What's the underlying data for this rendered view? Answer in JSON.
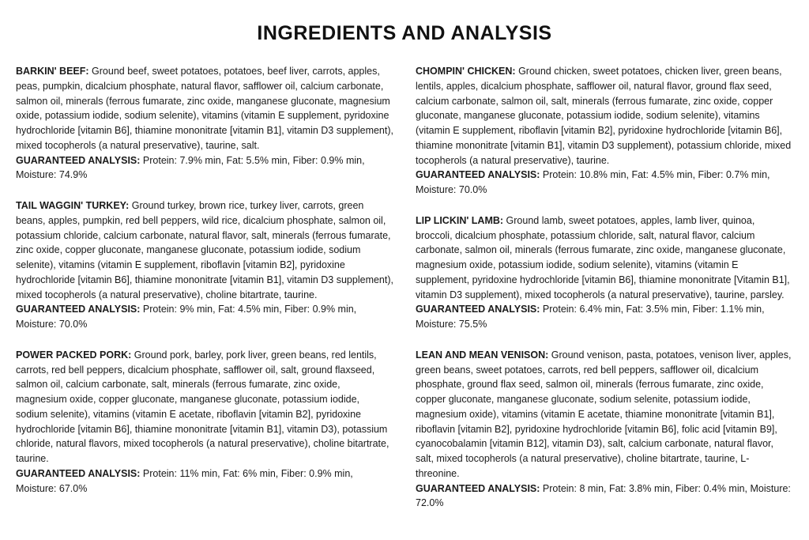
{
  "title": "INGREDIENTS AND ANALYSIS",
  "left": [
    {
      "name": "BARKIN' BEEF:",
      "ingredients": "Ground beef, sweet potatoes, potatoes, beef liver, carrots, apples, peas, pumpkin, dicalcium phosphate, natural flavor, safflower oil, calcium carbonate, salmon oil, minerals (ferrous fumarate, zinc oxide, manganese gluconate, magnesium oxide, potassium iodide, sodium selenite), vitamins (vitamin E supplement, pyridoxine hydrochloride [vitamin B6], thiamine mononitrate [vitamin B1], vitamin D3 supplement), mixed tocopherols (a natural preservative), taurine, salt.",
      "gaLabel": "GUARANTEED ANALYSIS:",
      "gaText": "Protein: 7.9% min, Fat: 5.5% min, Fiber: 0.9% min, Moisture: 74.9%"
    },
    {
      "name": "TAIL WAGGIN' TURKEY:",
      "ingredients": "Ground turkey, brown rice, turkey liver, carrots, green beans, apples, pumpkin, red bell peppers, wild rice, dicalcium phosphate, salmon oil, potassium chloride, calcium carbonate, natural flavor, salt, minerals (ferrous fumarate, zinc oxide, copper gluconate, manganese gluconate, potassium iodide, sodium selenite), vitamins (vitamin E supplement, riboflavin [vitamin B2], pyridoxine hydrochloride [vitamin B6], thiamine mononitrate [vitamin B1], vitamin D3 supplement), mixed tocopherols (a natural preservative), choline bitartrate, taurine.",
      "gaLabel": "GUARANTEED ANALYSIS:",
      "gaText": "Protein: 9% min, Fat: 4.5% min, Fiber: 0.9% min, Moisture: 70.0%"
    },
    {
      "name": "POWER PACKED PORK:",
      "ingredients": "Ground pork, barley, pork liver, green beans, red lentils, carrots, red bell peppers, dicalcium phosphate, safflower oil, salt, ground flaxseed, salmon oil, calcium carbonate, salt, minerals (ferrous fumarate, zinc oxide, magnesium oxide, copper gluconate, manganese gluconate, potassium iodide, sodium selenite), vitamins (vitamin E acetate, riboflavin [vitamin B2], pyridoxine hydrochloride [vitamin B6], thiamine mononitrate [vitamin B1], vitamin D3), potassium chloride, natural flavors, mixed tocopherols (a natural preservative), choline bitartrate, taurine.",
      "gaLabel": "GUARANTEED ANALYSIS:",
      "gaText": "Protein: 11% min, Fat: 6% min, Fiber: 0.9% min, Moisture: 67.0%"
    }
  ],
  "right": [
    {
      "name": "CHOMPIN' CHICKEN:",
      "ingredients": "Ground chicken, sweet potatoes, chicken liver, green beans, lentils, apples, dicalcium phosphate, safflower oil, natural flavor, ground flax seed, calcium carbonate, salmon oil, salt, minerals (ferrous fumarate, zinc oxide, copper gluconate, manganese gluconate, potassium iodide, sodium selenite), vitamins (vitamin E supplement, riboflavin [vitamin B2], pyridoxine hydrochloride [vitamin B6], thiamine mononitrate [vitamin B1], vitamin D3 supplement), potassium chloride, mixed tocopherols (a natural preservative), taurine.",
      "gaLabel": "GUARANTEED ANALYSIS:",
      "gaText": "Protein: 10.8% min, Fat: 4.5% min, Fiber: 0.7% min, Moisture: 70.0%"
    },
    {
      "name": "LIP LICKIN' LAMB:",
      "ingredients": "Ground lamb, sweet potatoes, apples, lamb liver, quinoa, broccoli, dicalcium phosphate, potassium chloride, salt, natural flavor, calcium carbonate, salmon oil, minerals (ferrous fumarate, zinc oxide, manganese gluconate, magnesium oxide, potassium iodide, sodium selenite), vitamins (vitamin E supplement, pyridoxine hydrochloride [vitamin B6], thiamine mononitrate [Vitamin B1], vitamin D3 supplement), mixed tocopherols (a natural preservative), taurine, parsley.",
      "gaLabel": "GUARANTEED ANALYSIS:",
      "gaText": "Protein: 6.4% min, Fat: 3.5% min, Fiber: 1.1% min, Moisture: 75.5%"
    },
    {
      "name": "LEAN AND MEAN VENISON:",
      "ingredients": "Ground venison, pasta, potatoes, venison liver, apples, green beans, sweet potatoes, carrots, red bell peppers, safflower oil, dicalcium phosphate, ground flax seed, salmon oil, minerals (ferrous fumarate, zinc oxide, copper gluconate, manganese gluconate, sodium selenite, potassium iodide, magnesium oxide), vitamins (vitamin E acetate, thiamine mononitrate [vitamin B1], riboflavin [vitamin B2], pyridoxine hydrochloride [vitamin B6], folic acid [vitamin B9], cyanocobalamin [vitamin B12], vitamin D3), salt, calcium carbonate, natural flavor, salt, mixed tocopherols (a natural preservative), choline bitartrate, taurine, L-threonine.",
      "gaLabel": "GUARANTEED ANALYSIS:",
      "gaText": "Protein: 8 min, Fat: 3.8% min, Fiber: 0.4% min, Moisture: 72.0%"
    }
  ]
}
